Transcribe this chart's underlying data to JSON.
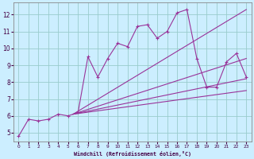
{
  "bg_color": "#cceeff",
  "grid_color": "#99cccc",
  "line_color": "#993399",
  "xlabel": "Windchill (Refroidissement éolien,°C)",
  "x_hours": [
    0,
    1,
    2,
    3,
    4,
    5,
    6,
    7,
    8,
    9,
    10,
    11,
    12,
    13,
    14,
    15,
    16,
    17,
    18,
    19,
    20,
    21,
    22,
    23
  ],
  "temp_data": [
    4.8,
    5.8,
    5.7,
    5.8,
    6.1,
    6.0,
    6.2,
    9.5,
    8.3,
    9.4,
    10.3,
    10.1,
    11.3,
    11.4,
    10.6,
    11.0,
    12.1,
    12.3,
    9.4,
    7.7,
    7.7,
    9.2,
    9.7,
    8.3
  ],
  "fan_lines": [
    {
      "x0": 5.5,
      "y0": 6.1,
      "x1": 23,
      "y1": 12.3
    },
    {
      "x0": 5.5,
      "y0": 6.1,
      "x1": 23,
      "y1": 9.4
    },
    {
      "x0": 5.5,
      "y0": 6.1,
      "x1": 23,
      "y1": 8.2
    },
    {
      "x0": 5.5,
      "y0": 6.1,
      "x1": 23,
      "y1": 7.5
    }
  ],
  "ylim": [
    4.5,
    12.7
  ],
  "xlim": [
    -0.5,
    23.5
  ],
  "yticks": [
    5,
    6,
    7,
    8,
    9,
    10,
    11,
    12
  ],
  "xticks": [
    0,
    1,
    2,
    3,
    4,
    5,
    6,
    7,
    8,
    9,
    10,
    11,
    12,
    13,
    14,
    15,
    16,
    17,
    18,
    19,
    20,
    21,
    22,
    23
  ]
}
